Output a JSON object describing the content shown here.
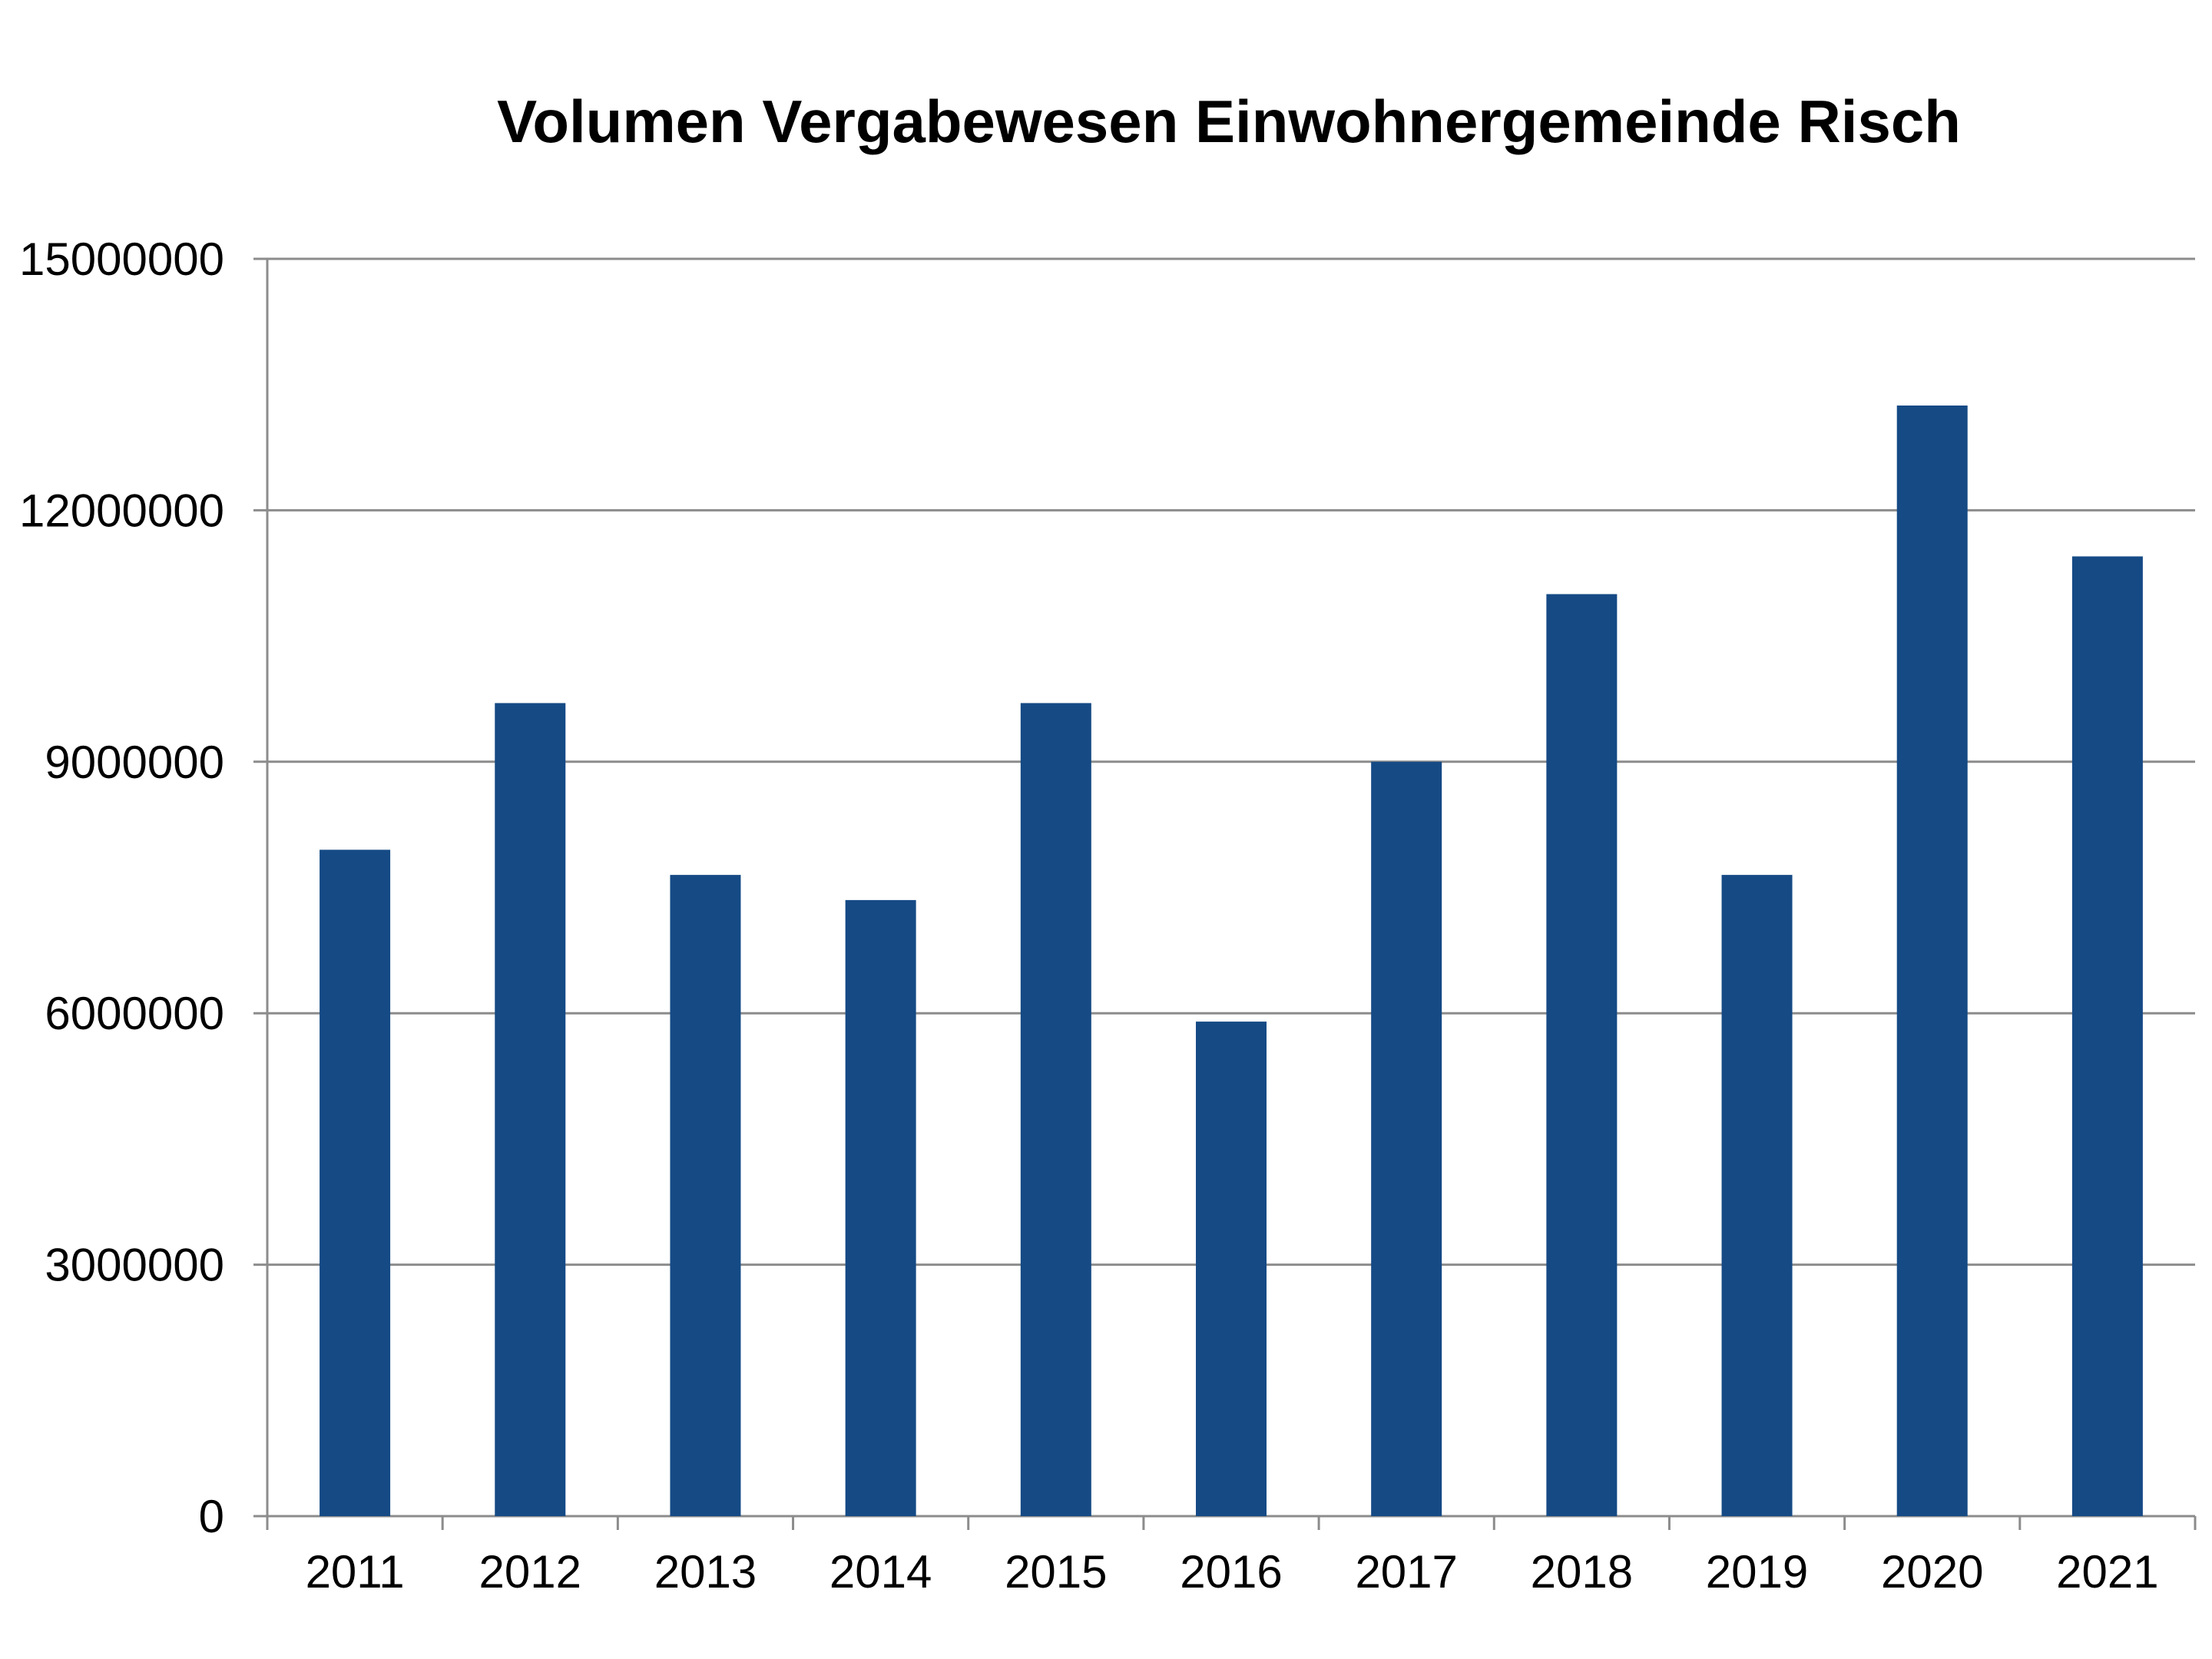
{
  "chart_data": {
    "type": "bar",
    "title": "Volumen Vergabewesen Einwohnergemeinde Risch",
    "xlabel": "",
    "ylabel": "",
    "categories": [
      "2011",
      "2012",
      "2013",
      "2014",
      "2015",
      "2016",
      "2017",
      "2018",
      "2019",
      "2020",
      "2021"
    ],
    "values": [
      7950000,
      9700000,
      7650000,
      7350000,
      9700000,
      5900000,
      9000000,
      11000000,
      7650000,
      13250000,
      11450000
    ],
    "ylim": [
      0,
      15000000
    ],
    "yticks": [
      "0",
      "3000000",
      "6000000",
      "9000000",
      "12000000",
      "15000000"
    ],
    "grid": true,
    "legend": "none",
    "bar_color": "#154a85",
    "grid_color": "#8c8c8c",
    "axis_color": "#8c8c8c"
  }
}
